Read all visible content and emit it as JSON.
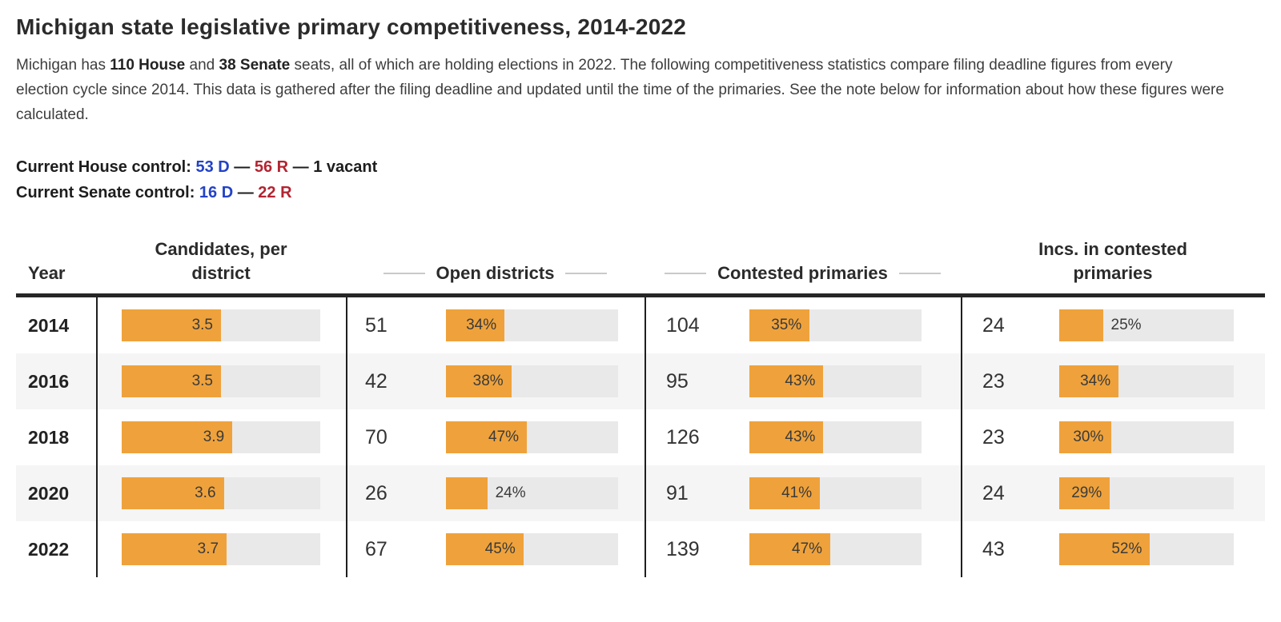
{
  "title": "Michigan state legislative primary competitiveness, 2014-2022",
  "intro": {
    "pre": "Michigan has ",
    "house_seats_bold": "110 House",
    "mid": " and ",
    "senate_seats_bold": "38 Senate",
    "post": " seats, all of which are holding elections in 2022. The following competitiveness statistics compare filing deadline figures from every election cycle since 2014. This data is gathered after the filing deadline and updated until the time of the primaries. See the note below for information about how these figures were calculated."
  },
  "control": {
    "house": {
      "label": "Current House control: ",
      "dem": "53 D",
      "sep1": " — ",
      "rep": "56 R",
      "sep2": " — ",
      "extra": "1 vacant"
    },
    "senate": {
      "label": "Current Senate control: ",
      "dem": "16 D",
      "sep1": " — ",
      "rep": "22 R"
    }
  },
  "colors": {
    "bar_fill": "#efa23b",
    "bar_track": "#e9e9e9",
    "dem_blue": "#2342c8",
    "rep_red": "#b32431",
    "row_stripe": "#f5f5f5",
    "header_rule": "#262626"
  },
  "table": {
    "headers": {
      "year": "Year",
      "candidates": "Candidates, per\ndistrict",
      "open": "Open districts",
      "contested": "Contested primaries",
      "incs": "Incs. in contested\nprimaries"
    },
    "candidates_scale_max": 7,
    "rows": [
      {
        "year": "2014",
        "candidates": 3.5,
        "open_n": "51",
        "open_pct": 34,
        "contested_n": "104",
        "contested_pct": 35,
        "incs_n": "24",
        "incs_pct": 25
      },
      {
        "year": "2016",
        "candidates": 3.5,
        "open_n": "42",
        "open_pct": 38,
        "contested_n": "95",
        "contested_pct": 43,
        "incs_n": "23",
        "incs_pct": 34
      },
      {
        "year": "2018",
        "candidates": 3.9,
        "open_n": "70",
        "open_pct": 47,
        "contested_n": "126",
        "contested_pct": 43,
        "incs_n": "23",
        "incs_pct": 30
      },
      {
        "year": "2020",
        "candidates": 3.6,
        "open_n": "26",
        "open_pct": 24,
        "contested_n": "91",
        "contested_pct": 41,
        "incs_n": "24",
        "incs_pct": 29
      },
      {
        "year": "2022",
        "candidates": 3.7,
        "open_n": "67",
        "open_pct": 45,
        "contested_n": "139",
        "contested_pct": 47,
        "incs_n": "43",
        "incs_pct": 52
      }
    ]
  },
  "chart_data": {
    "type": "table",
    "title": "Michigan state legislative primary competitiveness, 2014-2022",
    "categories": [
      "2014",
      "2016",
      "2018",
      "2020",
      "2022"
    ],
    "series": [
      {
        "name": "Candidates, per district",
        "values": [
          3.5,
          3.5,
          3.9,
          3.6,
          3.7
        ]
      },
      {
        "name": "Open districts (count)",
        "values": [
          51,
          42,
          70,
          26,
          67
        ]
      },
      {
        "name": "Open districts (%)",
        "values": [
          34,
          38,
          47,
          24,
          45
        ]
      },
      {
        "name": "Contested primaries (count)",
        "values": [
          104,
          95,
          126,
          91,
          139
        ]
      },
      {
        "name": "Contested primaries (%)",
        "values": [
          35,
          43,
          43,
          41,
          47
        ]
      },
      {
        "name": "Incs. in contested primaries (count)",
        "values": [
          24,
          23,
          23,
          24,
          43
        ]
      },
      {
        "name": "Incs. in contested primaries (%)",
        "values": [
          25,
          34,
          30,
          29,
          52
        ]
      }
    ],
    "layout": {
      "bars": "horizontal, orange fill on gray track",
      "percent_bar_range": [
        0,
        100
      ],
      "candidates_bar_range": [
        0,
        7
      ],
      "row_striping": true
    }
  }
}
